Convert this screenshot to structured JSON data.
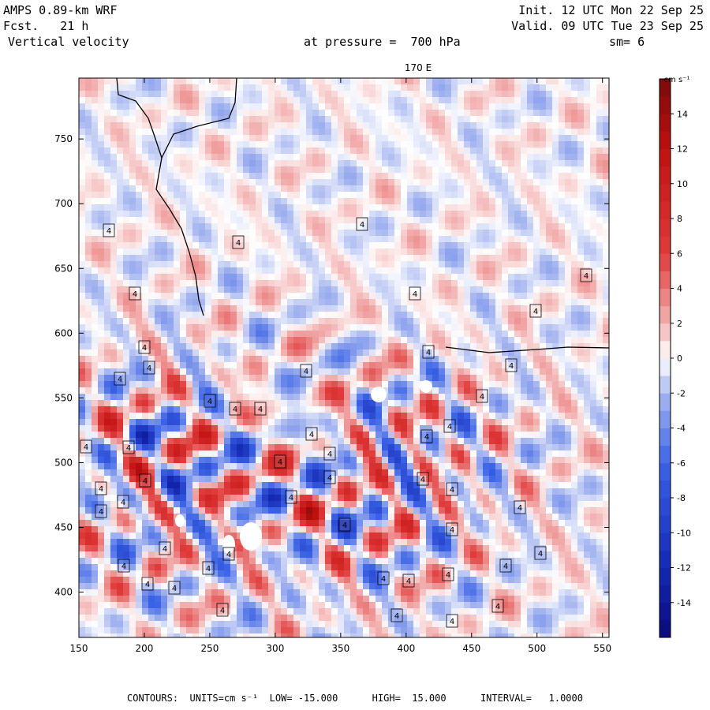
{
  "header": {
    "model": "AMPS 0.89-km WRF",
    "fcst": "Fcst.   21 h",
    "variable": "Vertical velocity",
    "init": "Init. 12 UTC Mon 22 Sep 25",
    "valid": "Valid. 09 UTC Tue 23 Sep 25",
    "pressure": "at pressure =  700 hPa",
    "smooth": "sm= 6",
    "lon_label": "170 E"
  },
  "footer": {
    "contours": "CONTOURS:  UNITS=cm s⁻¹  LOW= -15.000      HIGH=  15.000      INTERVAL=   1.0000"
  },
  "chart_data": {
    "type": "heatmap",
    "title": "Vertical velocity",
    "xlabel": "",
    "ylabel": "",
    "x_ticks": [
      150,
      200,
      250,
      300,
      350,
      400,
      450,
      500,
      550
    ],
    "y_ticks": [
      400,
      450,
      500,
      550,
      600,
      650,
      700,
      750
    ],
    "xlim": [
      150,
      555
    ],
    "ylim": [
      365,
      797
    ],
    "colorbar": {
      "units": "cm s⁻¹",
      "ticks": [
        14,
        12,
        10,
        8,
        6,
        4,
        2,
        0,
        -2,
        -4,
        -6,
        -8,
        -10,
        -12,
        -14
      ],
      "range": [
        -16,
        16
      ],
      "colors": {
        "min": "#0a0a7a",
        "neg_strong": "#1428b4",
        "neg_mid": "#3b63e6",
        "neg_weak": "#a9b8f0",
        "zero": "#ffffff",
        "pos_weak": "#f3b3b3",
        "pos_mid": "#e03a3a",
        "pos_strong": "#c01010",
        "max": "#7a0a0a"
      }
    },
    "contour_low": -15.0,
    "contour_high": 15.0,
    "contour_interval": 1.0,
    "contour_box_label": "4"
  }
}
